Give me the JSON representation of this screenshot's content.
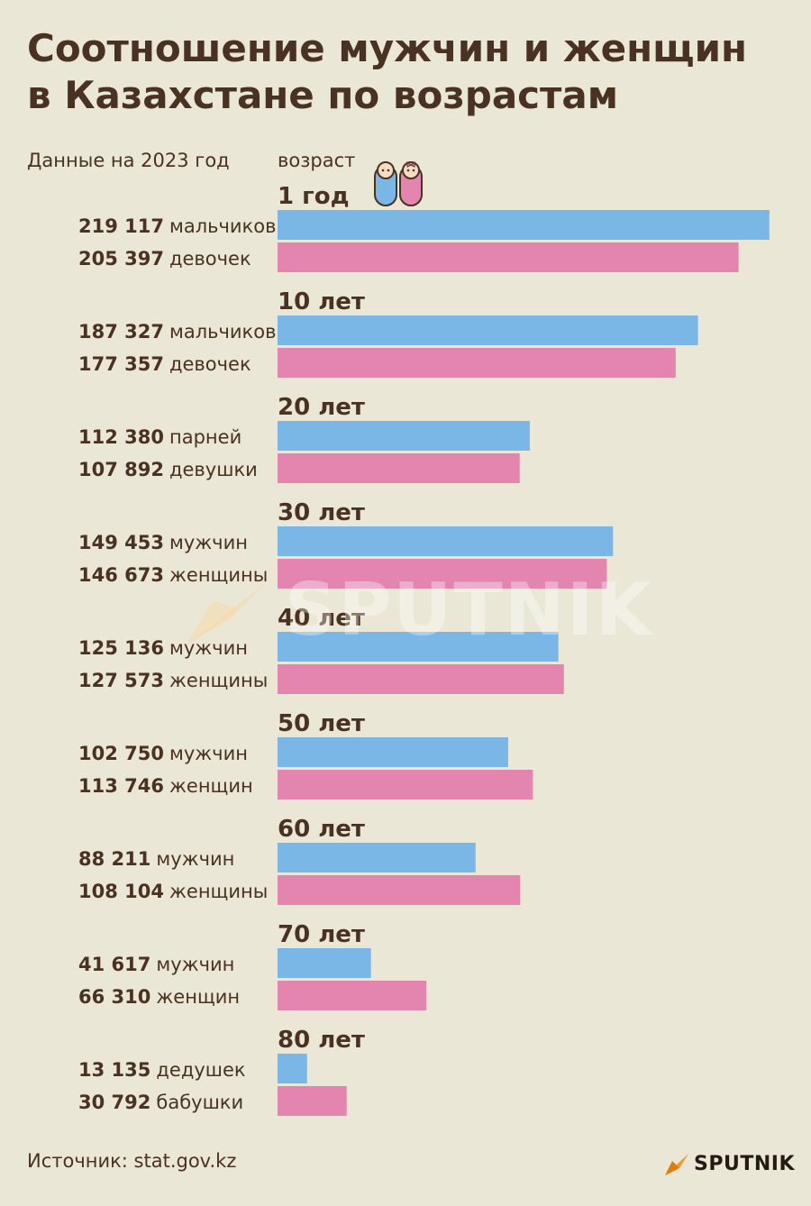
{
  "title_line1": "Соотношение мужчин и женщин",
  "title_line2": "в Казахстане по возрастам",
  "subtitle": "Данные на 2023 год",
  "age_header": "возраст",
  "source": "Источник: stat.gov.kz",
  "brand": "SPUTNIK",
  "watermark": "SPUTNIK",
  "colors": {
    "male": "#7ab7e6",
    "female": "#e385ae",
    "text": "#4a3222",
    "background": "#ebe7d6",
    "brand_orange": "#f29a2e"
  },
  "icons": [
    "babies-icon",
    "sputnik-logo-icon"
  ],
  "chart_data": {
    "type": "bar",
    "orientation": "horizontal",
    "categories": [
      "1 год",
      "10 лет",
      "20 лет",
      "30 лет",
      "40 лет",
      "50 лет",
      "60 лет",
      "70 лет",
      "80 лет"
    ],
    "xlim": [
      0,
      220000
    ],
    "grid": false,
    "series": [
      {
        "color": "#7ab7e6",
        "values": [
          219117,
          187327,
          112380,
          149453,
          125136,
          102750,
          88211,
          41617,
          13135
        ],
        "value_labels": [
          "219 117",
          "187 327",
          "112 380",
          "149 453",
          "125 136",
          "102 750",
          "88 211",
          "41 617",
          "13 135"
        ],
        "labels": [
          "мальчиков",
          "мальчиков",
          "парней",
          "мужчин",
          "мужчин",
          "мужчин",
          "мужчин",
          "мужчин",
          "дедушек"
        ]
      },
      {
        "color": "#e385ae",
        "values": [
          205397,
          177357,
          107892,
          146673,
          127573,
          113746,
          108104,
          66310,
          30792
        ],
        "value_labels": [
          "205 397",
          "177 357",
          "107 892",
          "146 673",
          "127 573",
          "113 746",
          "108 104",
          "66 310",
          "30 792"
        ],
        "labels": [
          "девочек",
          "девочек",
          "девушки",
          "женщины",
          "женщины",
          "женщин",
          "женщины",
          "женщин",
          "бабушки"
        ]
      }
    ]
  }
}
